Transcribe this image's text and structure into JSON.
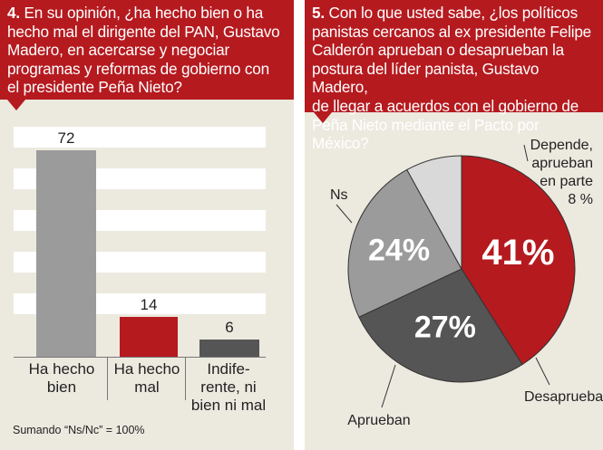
{
  "left_panel": {
    "question_number": "4.",
    "question_lines": [
      "En su opinión, ¿ha hecho bien o ha",
      "hecho mal el dirigente del PAN, Gustavo",
      "Madero, en acercarse y negociar",
      "programas y reformas de gobierno con",
      "el presidente Peña Nieto?"
    ],
    "note": "Sumando “Ns/Nc” = 100%"
  },
  "right_panel": {
    "question_number": "5.",
    "question_lines": [
      "Con lo que usted sabe, ¿los políticos",
      "panistas cercanos al ex presidente Felipe",
      "Calderón aprueban o desaprueban la",
      "postura del líder panista, Gustavo Madero,",
      "de llegar a acuerdos con el gobierno de",
      "Peña Nieto mediante el Pacto por México?"
    ]
  },
  "chart_data": [
    {
      "type": "bar",
      "categories": [
        [
          "Ha hecho",
          "bien"
        ],
        [
          "Ha hecho",
          "mal"
        ],
        [
          "Indife-",
          "rente, ni",
          "bien ni mal"
        ]
      ],
      "values": [
        72,
        14,
        6
      ],
      "value_labels": [
        "72",
        "14",
        "6"
      ],
      "colors": [
        "#9b9b9b",
        "#b51a1f",
        "#555555"
      ],
      "ylim": [
        0,
        80
      ],
      "grid": "horizontal bands"
    },
    {
      "type": "pie",
      "slices": [
        {
          "name": "Desaprueban",
          "value": 41,
          "value_label": "41%",
          "color": "#b51a1f"
        },
        {
          "name": "Aprueban",
          "value": 27,
          "value_label": "27%",
          "color": "#555555"
        },
        {
          "name": "Ns",
          "value": 24,
          "value_label": "24%",
          "color": "#9b9b9b"
        },
        {
          "name_lines": [
            "Depende,",
            "aprueban",
            "en parte"
          ],
          "value": 8,
          "value_label": "8 %",
          "color": "#d9d9d9"
        }
      ]
    }
  ]
}
